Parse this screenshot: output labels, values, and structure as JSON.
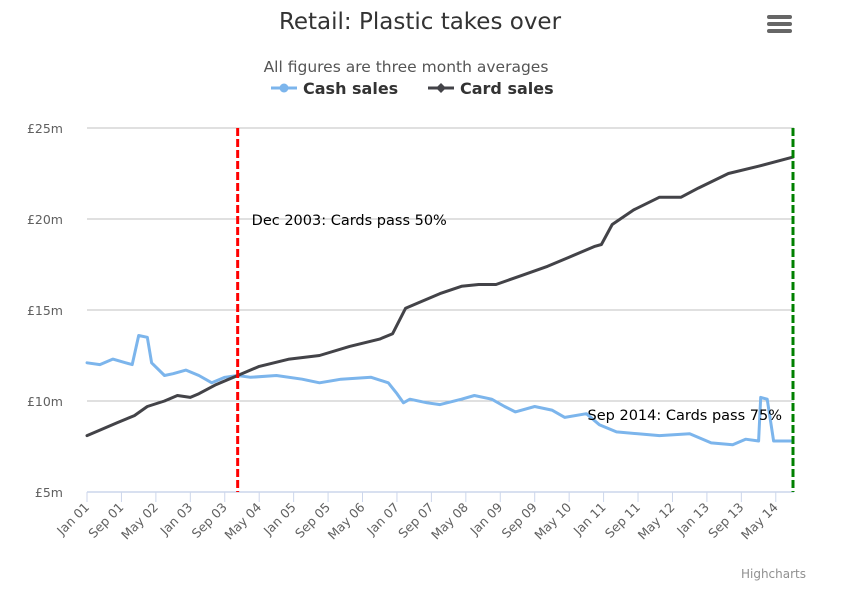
{
  "title": "Retail: Plastic takes over",
  "subtitle": "All figures are three month averages",
  "credits": "Highcharts",
  "menu_icon": "hamburger-menu-icon",
  "colors": {
    "cash": "#7cb5ec",
    "card": "#434348",
    "plotline_50": "#ff0000",
    "plotline_75": "#008000",
    "grid": "#c0c0c0",
    "axis": "#ccd6eb"
  },
  "chart_data": {
    "type": "line",
    "title": "Retail: Plastic takes over",
    "subtitle": "All figures are three month averages",
    "xlabel": "",
    "ylabel": "",
    "ylim": [
      5,
      25
    ],
    "y_ticks": [
      5,
      10,
      15,
      20,
      25
    ],
    "y_tick_labels": [
      "£5m",
      "£10m",
      "£15m",
      "£20m",
      "£25m"
    ],
    "x_range_months_from_jan01": [
      0,
      164
    ],
    "x_tick_months": [
      0,
      8,
      16,
      24,
      32,
      40,
      48,
      56,
      64,
      72,
      80,
      88,
      96,
      104,
      112,
      120,
      128,
      136,
      144,
      152,
      160
    ],
    "x_tick_labels": [
      "Jan 01",
      "Sep 01",
      "May 02",
      "Jan 03",
      "Sep 03",
      "May 04",
      "Jan 05",
      "Sep 05",
      "May 06",
      "Jan 07",
      "Sep 07",
      "May 08",
      "Jan 09",
      "Sep 09",
      "May 10",
      "Jan 11",
      "Sep 11",
      "May 12",
      "Jan 13",
      "Sep 13",
      "May 14"
    ],
    "grid": true,
    "legend": "top-center",
    "series": [
      {
        "name": "Cash sales",
        "color": "#7cb5ec",
        "points": [
          [
            0,
            12.1
          ],
          [
            3,
            12.0
          ],
          [
            6,
            12.3
          ],
          [
            9,
            12.1
          ],
          [
            10.5,
            12.0
          ],
          [
            12,
            13.6
          ],
          [
            14,
            13.5
          ],
          [
            15,
            12.1
          ],
          [
            18,
            11.4
          ],
          [
            20,
            11.5
          ],
          [
            23,
            11.7
          ],
          [
            26,
            11.4
          ],
          [
            29,
            11.0
          ],
          [
            32,
            11.3
          ],
          [
            35,
            11.4
          ],
          [
            38,
            11.3
          ],
          [
            44,
            11.4
          ],
          [
            50,
            11.2
          ],
          [
            54,
            11.0
          ],
          [
            59,
            11.2
          ],
          [
            66,
            11.3
          ],
          [
            70,
            11.0
          ],
          [
            72,
            10.4
          ],
          [
            73.5,
            9.9
          ],
          [
            75,
            10.1
          ],
          [
            79,
            9.9
          ],
          [
            82,
            9.8
          ],
          [
            87,
            10.1
          ],
          [
            90,
            10.3
          ],
          [
            94,
            10.1
          ],
          [
            97,
            9.7
          ],
          [
            99.5,
            9.4
          ],
          [
            104,
            9.7
          ],
          [
            108,
            9.5
          ],
          [
            111,
            9.1
          ],
          [
            116,
            9.3
          ],
          [
            119,
            8.7
          ],
          [
            123,
            8.3
          ],
          [
            128,
            8.2
          ],
          [
            133,
            8.1
          ],
          [
            140,
            8.2
          ],
          [
            145,
            7.7
          ],
          [
            150,
            7.6
          ],
          [
            153,
            7.9
          ],
          [
            156,
            7.8
          ],
          [
            156.5,
            10.2
          ],
          [
            158,
            10.1
          ],
          [
            159.5,
            7.8
          ],
          [
            164,
            7.8
          ]
        ]
      },
      {
        "name": "Card sales",
        "color": "#434348",
        "points": [
          [
            0,
            8.1
          ],
          [
            3,
            8.4
          ],
          [
            7,
            8.8
          ],
          [
            11,
            9.2
          ],
          [
            14,
            9.7
          ],
          [
            18,
            10.0
          ],
          [
            21,
            10.3
          ],
          [
            24,
            10.2
          ],
          [
            26,
            10.4
          ],
          [
            30,
            10.9
          ],
          [
            35,
            11.4
          ],
          [
            40,
            11.9
          ],
          [
            47,
            12.3
          ],
          [
            54,
            12.5
          ],
          [
            61,
            13.0
          ],
          [
            68,
            13.4
          ],
          [
            71,
            13.7
          ],
          [
            74,
            15.1
          ],
          [
            77,
            15.4
          ],
          [
            82,
            15.9
          ],
          [
            87,
            16.3
          ],
          [
            91,
            16.4
          ],
          [
            95,
            16.4
          ],
          [
            101,
            16.9
          ],
          [
            107,
            17.4
          ],
          [
            112,
            17.9
          ],
          [
            118,
            18.5
          ],
          [
            119.5,
            18.6
          ],
          [
            122,
            19.7
          ],
          [
            127,
            20.5
          ],
          [
            133,
            21.2
          ],
          [
            138,
            21.2
          ],
          [
            142,
            21.7
          ],
          [
            149,
            22.5
          ],
          [
            156,
            22.9
          ],
          [
            164,
            23.4
          ]
        ]
      }
    ],
    "plot_lines": [
      {
        "month": 35,
        "label": "Dec 2003: Cards pass 50%",
        "color": "#ff0000",
        "style": "dashed"
      },
      {
        "month": 164,
        "label": "Sep 2014: Cards pass 75%",
        "color": "#008000",
        "style": "dashed"
      }
    ]
  }
}
